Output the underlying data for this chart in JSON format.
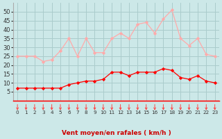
{
  "hours": [
    0,
    1,
    2,
    3,
    4,
    5,
    6,
    7,
    8,
    9,
    10,
    11,
    12,
    13,
    14,
    15,
    16,
    17,
    18,
    19,
    20,
    21,
    22,
    23
  ],
  "wind_avg": [
    7,
    7,
    7,
    7,
    7,
    7,
    9,
    10,
    11,
    11,
    12,
    16,
    16,
    14,
    16,
    16,
    16,
    18,
    17,
    13,
    12,
    14,
    11,
    10
  ],
  "wind_gust": [
    25,
    25,
    25,
    22,
    23,
    28,
    35,
    25,
    35,
    27,
    27,
    35,
    38,
    35,
    43,
    44,
    38,
    46,
    51,
    35,
    31,
    35,
    26,
    25
  ],
  "avg_color": "#ff0000",
  "gust_color": "#ffaaaa",
  "background_color": "#cce8e8",
  "grid_color": "#aacccc",
  "xlabel": "Vent moyen/en rafales ( km/h )",
  "ylim": [
    0,
    55
  ],
  "yticks": [
    5,
    10,
    15,
    20,
    25,
    30,
    35,
    40,
    45,
    50
  ],
  "arrow_color": "#ff4444"
}
